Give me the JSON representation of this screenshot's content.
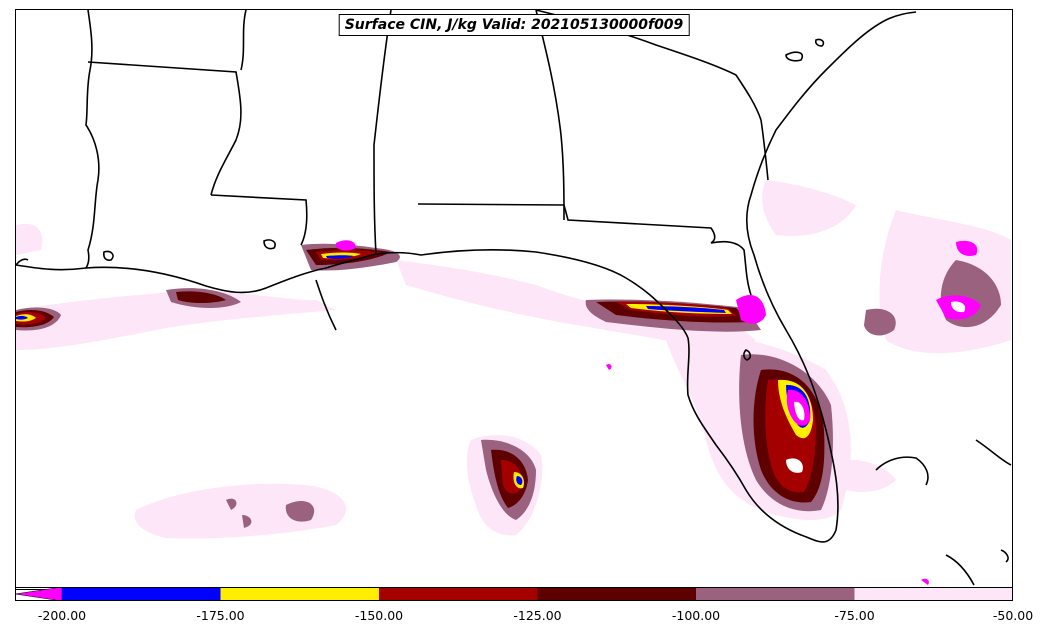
{
  "title": "Surface CIN, J/kg Valid: 202105130000f009",
  "colorbar": {
    "extend": "min",
    "extend_color": "#ff00ff",
    "bins": [
      {
        "from": -200,
        "to": -175,
        "color": "#0000ff"
      },
      {
        "from": -175,
        "to": -150,
        "color": "#ffee00"
      },
      {
        "from": -150,
        "to": -125,
        "color": "#a50000"
      },
      {
        "from": -125,
        "to": -100,
        "color": "#5e0000"
      },
      {
        "from": -100,
        "to": -75,
        "color": "#9b6280"
      },
      {
        "from": -75,
        "to": -50,
        "color": "#fde6f8"
      }
    ],
    "tick_labels": [
      "-200.00",
      "-175.00",
      "-150.00",
      "-125.00",
      "-100.00",
      "-75.00",
      "-50.00"
    ]
  },
  "map": {
    "region": "US Gulf Coast and Florida",
    "field": "Surface CIN",
    "units": "J/kg"
  }
}
